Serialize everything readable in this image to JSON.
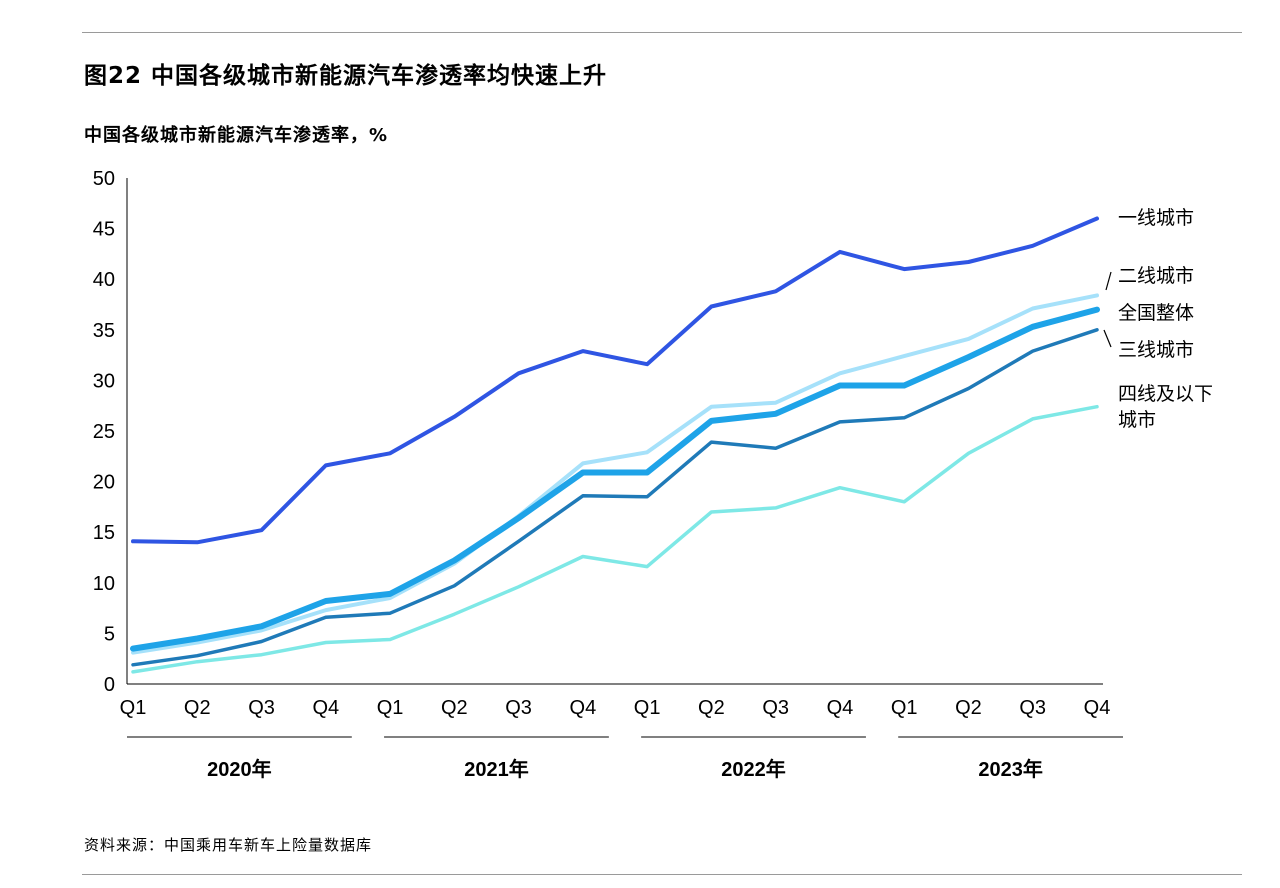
{
  "figure": {
    "title": "图22 中国各级城市新能源汽车渗透率均快速上升",
    "subtitle": "中国各级城市新能源汽车渗透率，%",
    "source": "资料来源：中国乘用车新车上险量数据库"
  },
  "chart_data": {
    "type": "line",
    "title": "中国各级城市新能源汽车渗透率，%",
    "ylabel": "",
    "xlabel": "",
    "ylim": [
      0,
      50
    ],
    "yticks": [
      0,
      5,
      10,
      15,
      20,
      25,
      30,
      35,
      40,
      45,
      50
    ],
    "grid": false,
    "categories": [
      "Q1",
      "Q2",
      "Q3",
      "Q4",
      "Q1",
      "Q2",
      "Q3",
      "Q4",
      "Q1",
      "Q2",
      "Q3",
      "Q4",
      "Q1",
      "Q2",
      "Q3",
      "Q4"
    ],
    "year_groups": [
      {
        "label": "2020年",
        "start": 0,
        "end": 3
      },
      {
        "label": "2021年",
        "start": 4,
        "end": 7
      },
      {
        "label": "2022年",
        "start": 8,
        "end": 11
      },
      {
        "label": "2023年",
        "start": 12,
        "end": 15
      }
    ],
    "series": [
      {
        "name": "四线及以下城市",
        "label_lines": [
          "四线及以下",
          "城市"
        ],
        "color": "#7ee8e6",
        "width": 3.5,
        "values": [
          1.2,
          2.2,
          2.9,
          4.1,
          4.4,
          6.9,
          9.6,
          12.6,
          11.6,
          17.0,
          17.4,
          19.4,
          18.0,
          22.8,
          26.2,
          27.4
        ]
      },
      {
        "name": "三线城市",
        "label_lines": [
          "三线城市"
        ],
        "color": "#1f7ab8",
        "width": 3.5,
        "values": [
          1.9,
          2.8,
          4.2,
          6.6,
          7.0,
          9.7,
          14.1,
          18.6,
          18.5,
          23.9,
          23.3,
          25.9,
          26.3,
          29.2,
          32.9,
          35.0
        ]
      },
      {
        "name": "二线城市",
        "label_lines": [
          "二线城市"
        ],
        "color": "#a6e1fa",
        "width": 4,
        "values": [
          3.1,
          4.1,
          5.3,
          7.3,
          8.5,
          11.9,
          16.6,
          21.8,
          22.9,
          27.4,
          27.8,
          30.7,
          32.4,
          34.1,
          37.1,
          38.4
        ]
      },
      {
        "name": "全国整体",
        "label_lines": [
          "全国整体"
        ],
        "color": "#1ea3e8",
        "width": 6,
        "values": [
          3.5,
          4.5,
          5.7,
          8.2,
          8.9,
          12.2,
          16.4,
          20.9,
          20.9,
          26.0,
          26.7,
          29.5,
          29.5,
          32.3,
          35.3,
          37.0
        ]
      },
      {
        "name": "一线城市",
        "label_lines": [
          "一线城市"
        ],
        "color": "#2f55e3",
        "width": 4,
        "values": [
          14.1,
          14.0,
          15.2,
          21.6,
          22.8,
          26.4,
          30.7,
          32.9,
          31.6,
          37.3,
          38.8,
          42.7,
          41.0,
          41.7,
          43.3,
          46.0
        ]
      }
    ]
  }
}
